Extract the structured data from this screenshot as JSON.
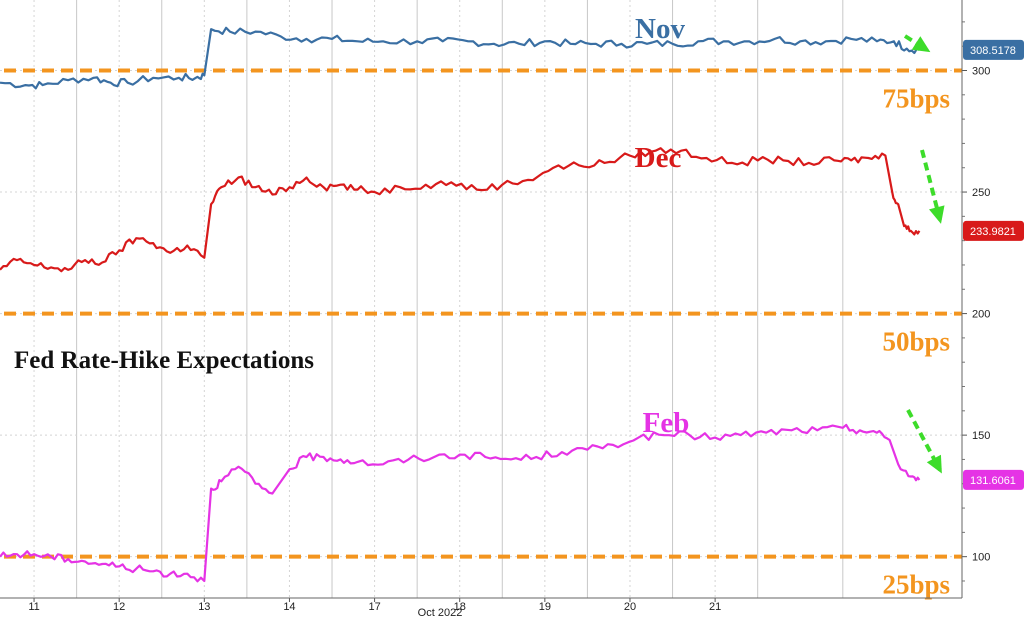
{
  "chart_data": {
    "type": "line",
    "title": "Fed Rate-Hike Expectations",
    "xlabel": "Oct 2022",
    "ylabel": "",
    "x_ticks": [
      "11",
      "12",
      "13",
      "14",
      "17",
      "18",
      "19",
      "20",
      "21"
    ],
    "x_range": [
      10.6,
      21.9
    ],
    "y_ticks": [
      100,
      150,
      200,
      250,
      300
    ],
    "ylim": [
      83,
      329
    ],
    "grid": true,
    "reference_lines": [
      {
        "value": 300,
        "label": "75bps",
        "color": "#f3951f"
      },
      {
        "value": 200,
        "label": "50bps",
        "color": "#f3951f"
      },
      {
        "value": 100,
        "label": "25bps",
        "color": "#f3951f"
      }
    ],
    "series": [
      {
        "name": "Nov",
        "color": "#3a6fa3",
        "last_value_label": "308.5178",
        "points": [
          [
            10.6,
            295
          ],
          [
            10.9,
            294
          ],
          [
            11.1,
            294
          ],
          [
            11.4,
            296
          ],
          [
            11.7,
            297
          ],
          [
            11.9,
            295
          ],
          [
            12.1,
            295
          ],
          [
            12.4,
            297
          ],
          [
            12.7,
            297
          ],
          [
            12.9,
            297
          ],
          [
            13.0,
            298
          ],
          [
            13.08,
            317
          ],
          [
            13.3,
            316
          ],
          [
            13.6,
            316
          ],
          [
            13.9,
            314
          ],
          [
            14.2,
            313
          ],
          [
            14.5,
            313
          ],
          [
            14.8,
            312
          ],
          [
            15.1,
            312
          ],
          [
            15.5,
            312
          ],
          [
            15.8,
            312
          ],
          [
            16.1,
            312
          ],
          [
            16.4,
            311
          ],
          [
            16.7,
            311
          ],
          [
            17.0,
            312
          ],
          [
            17.3,
            311
          ],
          [
            17.6,
            311
          ],
          [
            17.9,
            311
          ],
          [
            18.2,
            311
          ],
          [
            18.5,
            311
          ],
          [
            18.8,
            312
          ],
          [
            19.1,
            312
          ],
          [
            19.4,
            312
          ],
          [
            19.7,
            313
          ],
          [
            20.0,
            312
          ],
          [
            20.3,
            312
          ],
          [
            20.6,
            313
          ],
          [
            20.9,
            312
          ],
          [
            21.1,
            312
          ],
          [
            21.25,
            309
          ],
          [
            21.4,
            308.5
          ]
        ]
      },
      {
        "name": "Dec",
        "color": "#d81a1a",
        "last_value_label": "233.9821",
        "points": [
          [
            10.6,
            218
          ],
          [
            10.8,
            222
          ],
          [
            11.0,
            220
          ],
          [
            11.2,
            219
          ],
          [
            11.4,
            218
          ],
          [
            11.6,
            222
          ],
          [
            11.8,
            221
          ],
          [
            12.0,
            226
          ],
          [
            12.2,
            231
          ],
          [
            12.4,
            229
          ],
          [
            12.6,
            225
          ],
          [
            12.8,
            228
          ],
          [
            13.0,
            223
          ],
          [
            13.08,
            245
          ],
          [
            13.2,
            252
          ],
          [
            13.4,
            256
          ],
          [
            13.6,
            252
          ],
          [
            13.8,
            249
          ],
          [
            14.0,
            252
          ],
          [
            14.2,
            256
          ],
          [
            14.4,
            252
          ],
          [
            14.6,
            253
          ],
          [
            14.8,
            251
          ],
          [
            15.0,
            250
          ],
          [
            15.3,
            252
          ],
          [
            15.6,
            253
          ],
          [
            15.9,
            254
          ],
          [
            16.2,
            251
          ],
          [
            16.5,
            253
          ],
          [
            16.8,
            255
          ],
          [
            17.1,
            260
          ],
          [
            17.4,
            261
          ],
          [
            17.7,
            262
          ],
          [
            18.0,
            265
          ],
          [
            18.3,
            267
          ],
          [
            18.6,
            267
          ],
          [
            18.9,
            264
          ],
          [
            19.2,
            262
          ],
          [
            19.5,
            263
          ],
          [
            19.8,
            263
          ],
          [
            20.1,
            262
          ],
          [
            20.4,
            263
          ],
          [
            20.6,
            263
          ],
          [
            20.8,
            264
          ],
          [
            21.0,
            265
          ],
          [
            21.08,
            250
          ],
          [
            21.15,
            245
          ],
          [
            21.22,
            236
          ],
          [
            21.3,
            234
          ],
          [
            21.4,
            234
          ]
        ]
      },
      {
        "name": "Feb",
        "color": "#e533e5",
        "last_value_label": "131.6061",
        "points": [
          [
            10.6,
            100
          ],
          [
            10.8,
            101
          ],
          [
            11.0,
            101
          ],
          [
            11.2,
            100
          ],
          [
            11.4,
            99
          ],
          [
            11.6,
            98
          ],
          [
            11.8,
            97
          ],
          [
            12.0,
            96
          ],
          [
            12.2,
            95
          ],
          [
            12.4,
            94
          ],
          [
            12.6,
            93
          ],
          [
            12.8,
            93
          ],
          [
            13.0,
            90
          ],
          [
            13.08,
            128
          ],
          [
            13.2,
            131
          ],
          [
            13.4,
            137
          ],
          [
            13.6,
            130
          ],
          [
            13.8,
            126
          ],
          [
            14.0,
            136
          ],
          [
            14.2,
            141
          ],
          [
            14.4,
            141
          ],
          [
            14.6,
            140
          ],
          [
            14.8,
            139
          ],
          [
            15.1,
            138
          ],
          [
            15.4,
            140
          ],
          [
            15.7,
            141
          ],
          [
            16.0,
            142
          ],
          [
            16.3,
            141
          ],
          [
            16.6,
            140
          ],
          [
            16.9,
            141
          ],
          [
            17.2,
            143
          ],
          [
            17.5,
            144
          ],
          [
            17.8,
            146
          ],
          [
            18.1,
            149
          ],
          [
            18.4,
            150
          ],
          [
            18.7,
            150
          ],
          [
            19.0,
            149
          ],
          [
            19.3,
            150
          ],
          [
            19.6,
            151
          ],
          [
            19.9,
            152
          ],
          [
            20.2,
            152
          ],
          [
            20.5,
            153
          ],
          [
            20.7,
            152
          ],
          [
            20.9,
            151
          ],
          [
            21.05,
            148
          ],
          [
            21.15,
            138
          ],
          [
            21.3,
            133
          ],
          [
            21.4,
            131.6
          ]
        ]
      }
    ]
  },
  "annotations": {
    "arrow_color": "#3ddc2a"
  }
}
